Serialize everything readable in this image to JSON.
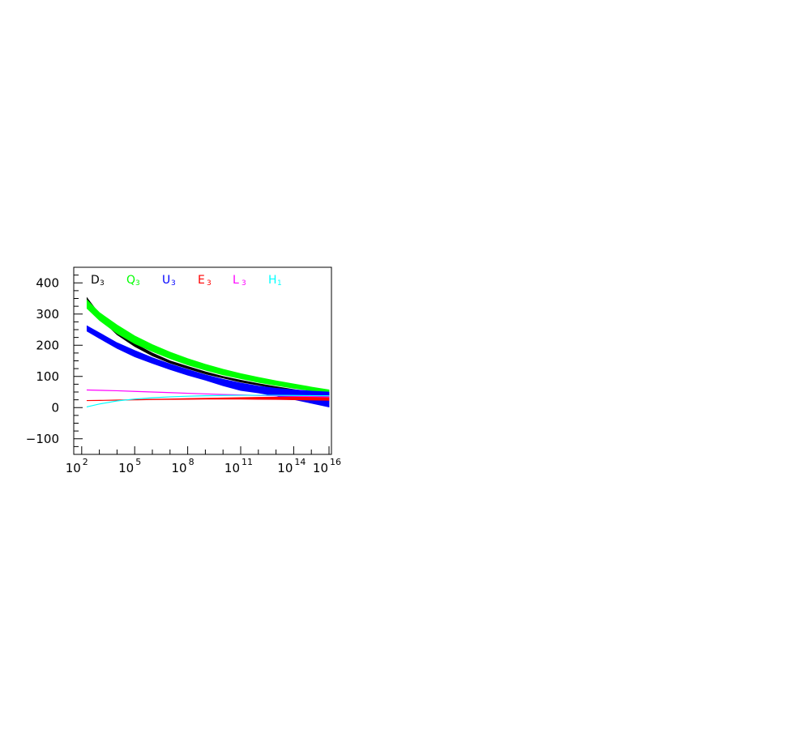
{
  "chart_data": {
    "type": "area",
    "title": "",
    "xlabel": "",
    "ylabel": "",
    "x_scale": "log10",
    "xlim": [
      100,
      10000000000000000
    ],
    "ylim": [
      -150,
      450
    ],
    "x_ticks": [
      {
        "base": "10",
        "exp": "2",
        "x": 100
      },
      {
        "base": "10",
        "exp": "5",
        "x": 100000
      },
      {
        "base": "10",
        "exp": "8",
        "x": 100000000
      },
      {
        "base": "10",
        "exp": "11",
        "x": 100000000000
      },
      {
        "base": "10",
        "exp": "14",
        "x": 100000000000000
      },
      {
        "base": "10",
        "exp": "16",
        "x": 10000000000000000
      }
    ],
    "y_ticks": [
      {
        "label": "400",
        "y": 400
      },
      {
        "label": "300",
        "y": 300
      },
      {
        "label": "200",
        "y": 200
      },
      {
        "label": "100",
        "y": 100
      },
      {
        "label": "0",
        "y": 0
      },
      {
        "label": "−100",
        "y": -100
      }
    ],
    "grid": false,
    "legend_position": "top",
    "series": [
      {
        "name": "D",
        "sub": "3",
        "color": "#000000",
        "x": [
          200,
          1000,
          10000,
          100000,
          1000000,
          10000000,
          100000000,
          1000000000,
          10000000000,
          100000000000,
          1000000000000,
          10000000000000,
          100000000000000,
          1000000000000000,
          10000000000000000
        ],
        "upper": [
          352,
          300,
          245,
          205,
          175,
          150,
          132,
          115,
          100,
          88,
          77,
          67,
          58,
          50,
          42
        ],
        "lower": [
          340,
          288,
          234,
          196,
          166,
          143,
          125,
          108,
          95,
          82,
          72,
          62,
          53,
          45,
          38
        ]
      },
      {
        "name": "Q",
        "sub": "3",
        "color": "#00ff00",
        "x": [
          200,
          1000,
          10000,
          100000,
          1000000,
          10000000,
          100000000,
          1000000000,
          10000000000,
          100000000000,
          1000000000000,
          10000000000000,
          100000000000000,
          1000000000000000,
          10000000000000000
        ],
        "upper": [
          345,
          305,
          265,
          230,
          202,
          178,
          157,
          139,
          123,
          109,
          97,
          86,
          76,
          66,
          57
        ],
        "lower": [
          318,
          280,
          238,
          205,
          180,
          157,
          137,
          120,
          105,
          93,
          81,
          71,
          62,
          54,
          45
        ]
      },
      {
        "name": "U",
        "sub": "3",
        "color": "#0000ff",
        "x": [
          200,
          1000,
          10000,
          100000,
          1000000,
          10000000,
          100000000,
          1000000000,
          10000000000,
          100000000000,
          1000000000000,
          10000000000000,
          100000000000000,
          1000000000000000,
          10000000000000000
        ],
        "upper": [
          262,
          240,
          208,
          183,
          160,
          140,
          122,
          105,
          91,
          79,
          69,
          62,
          57,
          53,
          50
        ],
        "lower": [
          245,
          222,
          190,
          163,
          142,
          122,
          104,
          88,
          70,
          55,
          47,
          37,
          26,
          14,
          2
        ]
      },
      {
        "name": "E",
        "sub": "3",
        "color": "#ff0000",
        "x": [
          200,
          1000,
          10000,
          100000,
          1000000,
          10000000,
          100000000,
          1000000000,
          10000000000,
          100000000000,
          1000000000000,
          10000000000000,
          100000000000000,
          1000000000000000,
          10000000000000000
        ],
        "upper": [
          23,
          23.5,
          24.5,
          25.5,
          27,
          28,
          29,
          30,
          31,
          32,
          33,
          33.5,
          34,
          34.5,
          35
        ],
        "lower": [
          22,
          22.5,
          23.5,
          24.5,
          25.5,
          26,
          26.5,
          27,
          27,
          27,
          26.5,
          26,
          25,
          24,
          23
        ]
      },
      {
        "name": "L",
        "sub": "3",
        "color": "#ff00ff",
        "x": [
          200,
          1000,
          10000,
          100000,
          1000000,
          10000000,
          100000000,
          1000000000,
          10000000000,
          100000000000,
          1000000000000,
          10000000000000,
          100000000000000,
          1000000000000000,
          10000000000000000
        ],
        "upper": [
          57,
          56,
          54.5,
          52.5,
          50.5,
          48.5,
          46.5,
          44.5,
          42.5,
          41,
          39.5,
          38,
          37,
          36,
          35
        ],
        "lower": [
          56,
          55,
          53.5,
          51.5,
          49.5,
          47.5,
          45.5,
          43.5,
          41.5,
          40,
          38.5,
          37,
          36,
          35,
          34
        ]
      },
      {
        "name": "H",
        "sub": "1",
        "color": "#00ffff",
        "x": [
          200,
          1000,
          10000,
          100000,
          1000000,
          10000000,
          100000000,
          1000000000,
          10000000000,
          100000000000,
          1000000000000,
          10000000000000,
          100000000000000,
          1000000000000000,
          10000000000000000
        ],
        "upper": [
          3,
          12,
          22,
          28,
          32,
          35,
          37,
          38.5,
          39.5,
          40,
          40,
          40,
          39.5,
          39,
          38.5
        ],
        "lower": [
          2,
          11,
          21,
          27,
          31,
          34,
          36,
          37.5,
          38.5,
          39,
          39,
          39,
          38.5,
          38,
          37.5
        ]
      }
    ]
  }
}
